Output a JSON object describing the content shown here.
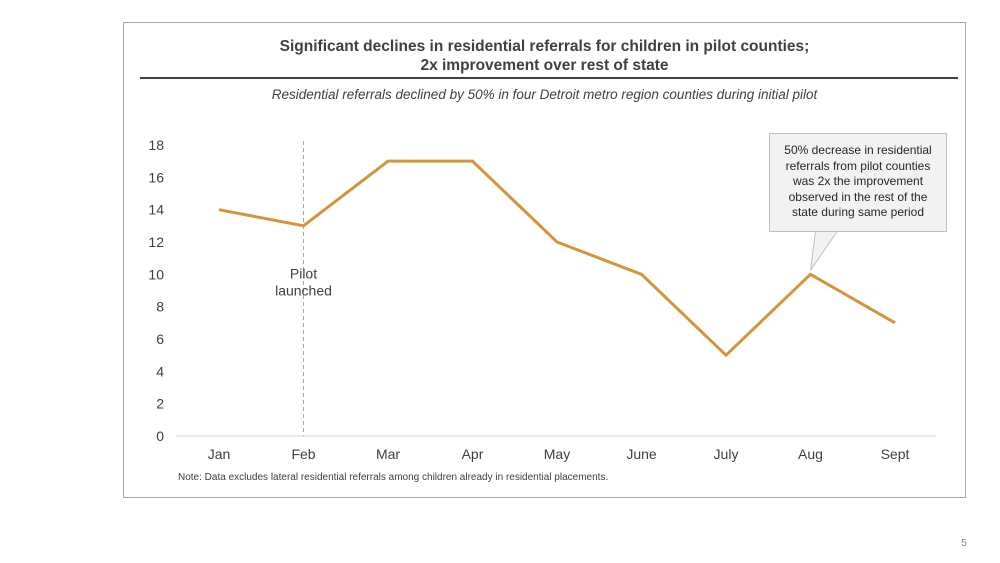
{
  "slide": {
    "title_line1": "Significant declines in residential referrals for children in pilot counties;",
    "title_line2": "2x improvement over rest of state",
    "subtitle": "Residential referrals declined by 50% in four Detroit metro region counties during initial pilot",
    "note": "Note: Data excludes lateral residential referrals among children already in residential placements.",
    "page_number": "5"
  },
  "chart_data": {
    "type": "line",
    "categories": [
      "Jan",
      "Feb",
      "Mar",
      "Apr",
      "May",
      "June",
      "July",
      "Aug",
      "Sept"
    ],
    "series": [
      {
        "values": [
          14,
          13,
          17,
          17,
          12,
          10,
          5,
          10,
          7
        ]
      }
    ],
    "ylim": [
      0,
      18
    ],
    "yticks": [
      0,
      2,
      4,
      6,
      8,
      10,
      12,
      14,
      16,
      18
    ],
    "grid": false,
    "line_color": "#d4943a",
    "axis_color": "#d9d9d9",
    "marker_line": {
      "category": "Feb",
      "label_line1": "Pilot",
      "label_line2": "launched",
      "label_value": 10
    },
    "callout": {
      "text": "50% decrease in residential referrals from pilot counties was 2x the improvement observed in the rest of the state during same period",
      "points_to": "Aug"
    }
  }
}
